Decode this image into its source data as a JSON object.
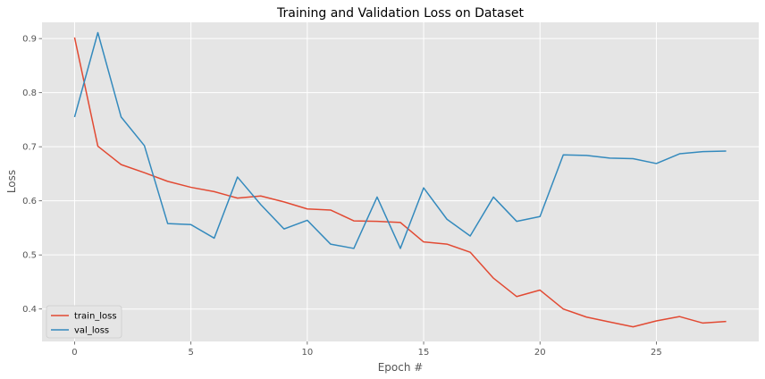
{
  "chart_data": {
    "type": "line",
    "title": "Training and Validation Loss on Dataset",
    "xlabel": "Epoch #",
    "ylabel": "Loss",
    "xlim": [
      -1.4,
      29.4
    ],
    "ylim": [
      0.34,
      0.93
    ],
    "xticks": [
      0,
      5,
      10,
      15,
      20,
      25
    ],
    "yticks": [
      0.4,
      0.5,
      0.6,
      0.7,
      0.8,
      0.9
    ],
    "grid": true,
    "legend_position": "lower-left",
    "x": [
      0,
      1,
      2,
      3,
      4,
      5,
      6,
      7,
      8,
      9,
      10,
      11,
      12,
      13,
      14,
      15,
      16,
      17,
      18,
      19,
      20,
      21,
      22,
      23,
      24,
      25,
      26,
      27,
      28
    ],
    "series": [
      {
        "name": "train_loss",
        "color": "#E24A33",
        "values": [
          0.902,
          0.701,
          0.667,
          0.652,
          0.636,
          0.625,
          0.617,
          0.605,
          0.609,
          0.598,
          0.585,
          0.583,
          0.563,
          0.562,
          0.56,
          0.524,
          0.52,
          0.505,
          0.457,
          0.423,
          0.435,
          0.4,
          0.385,
          0.376,
          0.367,
          0.378,
          0.386,
          0.374,
          0.377
        ]
      },
      {
        "name": "val_loss",
        "color": "#348ABD",
        "values": [
          0.755,
          0.911,
          0.755,
          0.702,
          0.558,
          0.556,
          0.531,
          0.644,
          0.593,
          0.548,
          0.564,
          0.52,
          0.512,
          0.607,
          0.512,
          0.624,
          0.566,
          0.535,
          0.607,
          0.562,
          0.571,
          0.685,
          0.684,
          0.679,
          0.678,
          0.669,
          0.687,
          0.691,
          0.692
        ]
      }
    ]
  }
}
